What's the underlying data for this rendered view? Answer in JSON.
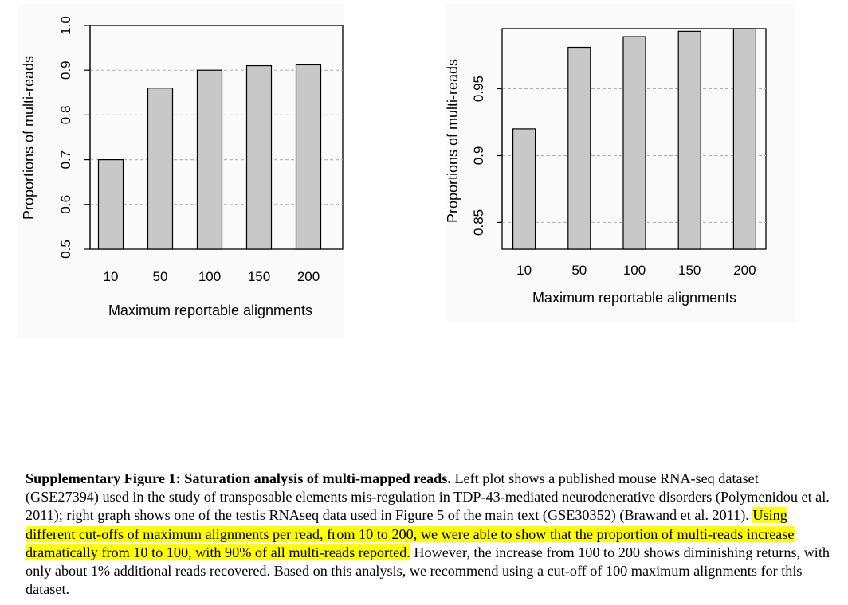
{
  "chart_data": [
    {
      "type": "bar",
      "categories": [
        "10",
        "50",
        "100",
        "150",
        "200"
      ],
      "values": [
        0.7,
        0.86,
        0.9,
        0.91,
        0.912
      ],
      "ylim": [
        0.5,
        1.0
      ],
      "yticks": [
        "0.5",
        "0.6",
        "0.7",
        "0.8",
        "0.9",
        "1.0"
      ],
      "ytick_values": [
        0.5,
        0.6,
        0.7,
        0.8,
        0.9,
        1.0
      ],
      "xlabel": "Maximum reportable alignments",
      "ylabel": "Proportions of multi-reads",
      "grid": "horizontal dashed",
      "bar_color": "#c8c8c8"
    },
    {
      "type": "bar",
      "categories": [
        "10",
        "50",
        "100",
        "150",
        "200"
      ],
      "values": [
        0.92,
        0.981,
        0.989,
        0.993,
        0.995
      ],
      "ylim": [
        0.83,
        0.995
      ],
      "yticks": [
        "0.85",
        "0.9",
        "0.95"
      ],
      "ytick_values": [
        0.85,
        0.9,
        0.95
      ],
      "xlabel": "Maximum reportable alignments",
      "ylabel": "Proportions of multi-reads",
      "grid": "horizontal dashed",
      "bar_color": "#c8c8c8"
    }
  ],
  "caption": {
    "title": "Supplementary Figure 1: Saturation analysis of multi-mapped reads.",
    "part1": " Left plot shows a published mouse RNA-seq dataset (GSE27394) used in the study of transposable elements mis-regulation in TDP-43-mediated neurodenerative disorders (Polymenidou et al. 2011); right graph shows one of the testis RNAseq data used in Figure 5 of the main text (GSE30352) (Brawand et al. 2011). ",
    "highlight": "Using different cut-offs of maximum alignments per read, from 10 to 200, we were able to show that the proportion of multi-reads increase dramatically from 10 to 100, with 90% of all multi-reads reported.",
    "part2": " However, the increase from 100 to 200 shows diminishing returns, with only about 1% additional reads recovered. Based on this analysis, we recommend using a cut-off of 100 maximum alignments for this dataset."
  }
}
